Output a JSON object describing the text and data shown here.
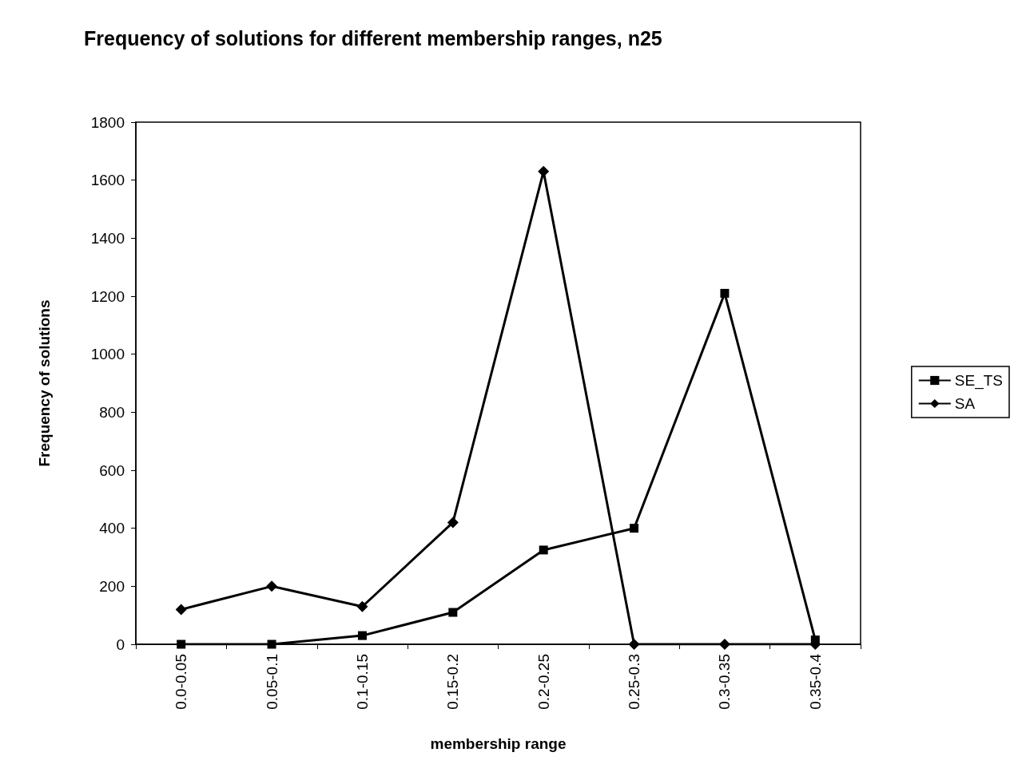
{
  "chart_data": {
    "type": "line",
    "title": "Frequency of solutions for different membership ranges, n25",
    "xlabel": "membership range",
    "ylabel": "Frequency of solutions",
    "categories": [
      "0.0-0.05",
      "0.05-0.1",
      "0.1-0.15",
      "0.15-0.2",
      "0.2-0.25",
      "0.25-0.3",
      "0.3-0.35",
      "0.35-0.4"
    ],
    "series": [
      {
        "name": "SE_TS",
        "color": "#000000",
        "marker": "square",
        "values": [
          0,
          0,
          30,
          110,
          325,
          400,
          1210,
          15
        ]
      },
      {
        "name": "SA",
        "color": "#000000",
        "marker": "diamond",
        "values": [
          120,
          200,
          130,
          420,
          1630,
          0,
          0,
          0
        ]
      }
    ],
    "ylim": [
      0,
      1800
    ],
    "yticks": [
      0,
      200,
      400,
      600,
      800,
      1000,
      1200,
      1400,
      1600,
      1800
    ],
    "grid": false,
    "legend": "right",
    "line_style": "solid"
  }
}
